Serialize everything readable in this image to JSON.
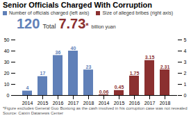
{
  "chart_data": {
    "type": "bar",
    "title": "Senior Officials Charged With Corruption",
    "categories": [
      "2014",
      "2015",
      "2016",
      "2017",
      "2018",
      "2014",
      "2015",
      "2016",
      "2017",
      "2018"
    ],
    "series": [
      {
        "name": "Number of officials charged (left axis)",
        "color": "#6080b8",
        "values": [
          4,
          17,
          36,
          40,
          23,
          null,
          null,
          null,
          null,
          null
        ]
      },
      {
        "name": "Size of alleged bribes (right axis)",
        "color": "#8b3030",
        "axis": "y2",
        "values": [
          null,
          null,
          null,
          null,
          null,
          0.06,
          0.45,
          1.75,
          3.15,
          2.31
        ]
      }
    ],
    "ylim": [
      0,
      50
    ],
    "yticks": [
      0,
      10,
      20,
      30,
      40,
      50
    ],
    "y2lim": [
      0,
      5
    ],
    "y2ticks": [
      0,
      1,
      2,
      3,
      4,
      5
    ],
    "data_labels": true,
    "grid": false,
    "legend": "top",
    "annotations": [
      {
        "text": "120",
        "color": "#6080b8"
      },
      {
        "text": "Total"
      },
      {
        "text": "7.73",
        "color": "#8b3030"
      },
      {
        "text": "*",
        "color": "#8b3030"
      },
      {
        "text": "billion yuan"
      }
    ],
    "footnotes": [
      "*Figure excludes General Guo Boxiong as the cash involved in his corruption case was not revealed",
      "Source: Caixin Datanews Center"
    ]
  }
}
